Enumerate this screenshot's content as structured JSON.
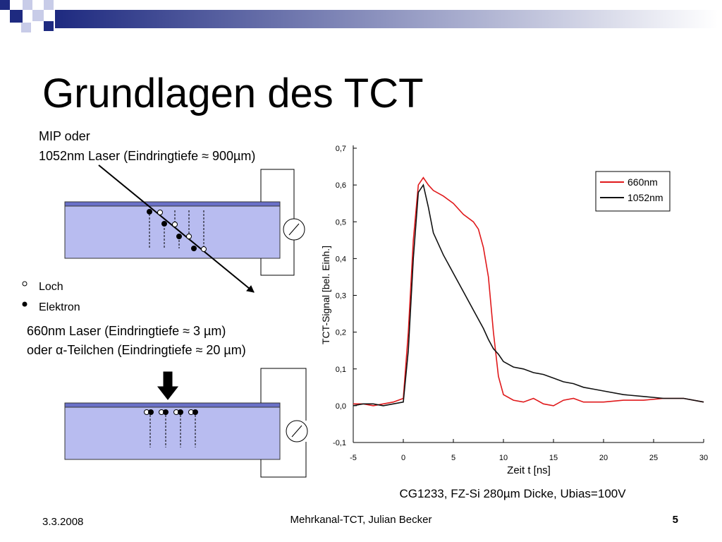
{
  "title": "Grundlagen des TCT",
  "diagram": {
    "top_label_1": "MIP oder",
    "top_label_2": "1052nm Laser (Eindringtiefe ≈ 900µm)",
    "legend_hole": "Loch",
    "legend_electron": "Elektron",
    "bottom_label_1": "660nm Laser (Eindringtiefe ≈ 3 µm)",
    "bottom_label_2": "oder α-Teilchen (Eindringtiefe ≈ 20 µm)"
  },
  "chart_data": {
    "type": "line",
    "xlabel": "Zeit t [ns]",
    "ylabel": "TCT-Signal [bel. Einh.]",
    "caption": "CG1233, FZ-Si 280µm Dicke, Ubias=100V",
    "xlim": [
      -5,
      30
    ],
    "ylim": [
      -0.1,
      0.7
    ],
    "xticks": [
      -5,
      0,
      5,
      10,
      15,
      20,
      25,
      30
    ],
    "yticks": [
      {
        "value": -0.1,
        "label": "-0,1"
      },
      {
        "value": 0,
        "label": "0,0"
      },
      {
        "value": 0.1,
        "label": "0,1"
      },
      {
        "value": 0.2,
        "label": "0,2"
      },
      {
        "value": 0.3,
        "label": "0,3"
      },
      {
        "value": 0.4,
        "label": "0,4"
      },
      {
        "value": 0.5,
        "label": "0,5"
      },
      {
        "value": 0.6,
        "label": "0,6"
      },
      {
        "value": 0.7,
        "label": "0,7"
      }
    ],
    "legend": "upper right",
    "x": [
      -5,
      -4,
      -3,
      -2,
      -1,
      0,
      0.5,
      1,
      1.5,
      2,
      2.5,
      3,
      4,
      5,
      6,
      7,
      7.5,
      8,
      8.5,
      9,
      9.5,
      10,
      11,
      12,
      13,
      14,
      15,
      16,
      17,
      18,
      19,
      20,
      22,
      24,
      26,
      28,
      30
    ],
    "series": [
      {
        "name": "660nm",
        "color": "#e0191b",
        "values": [
          0.005,
          0.005,
          0.0,
          0.005,
          0.01,
          0.02,
          0.2,
          0.45,
          0.6,
          0.62,
          0.6,
          0.585,
          0.57,
          0.55,
          0.52,
          0.5,
          0.48,
          0.43,
          0.35,
          0.2,
          0.08,
          0.03,
          0.015,
          0.01,
          0.02,
          0.005,
          0.0,
          0.015,
          0.02,
          0.01,
          0.01,
          0.01,
          0.015,
          0.015,
          0.02,
          0.02,
          0.01
        ]
      },
      {
        "name": "1052nm",
        "color": "#111111",
        "values": [
          0.0,
          0.005,
          0.005,
          0.0,
          0.005,
          0.01,
          0.15,
          0.4,
          0.58,
          0.6,
          0.54,
          0.47,
          0.41,
          0.36,
          0.31,
          0.26,
          0.235,
          0.21,
          0.18,
          0.155,
          0.14,
          0.12,
          0.105,
          0.1,
          0.09,
          0.085,
          0.075,
          0.065,
          0.06,
          0.05,
          0.045,
          0.04,
          0.03,
          0.025,
          0.02,
          0.02,
          0.01
        ]
      }
    ]
  },
  "footer": {
    "date": "3.3.2008",
    "center": "Mehrkanal-TCT, Julian Becker",
    "page": "5"
  }
}
